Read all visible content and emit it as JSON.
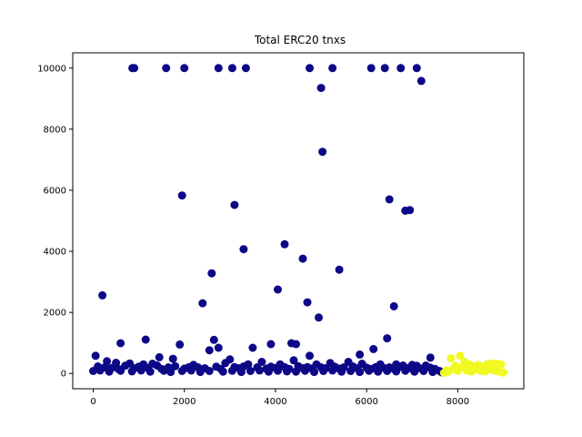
{
  "chart_data": {
    "type": "scatter",
    "title": "Total ERC20 tnxs",
    "xlabel": "",
    "ylabel": "",
    "xlim": [
      -450,
      9450
    ],
    "ylim": [
      -500,
      10500
    ],
    "xticks": [
      0,
      2000,
      4000,
      6000,
      8000
    ],
    "yticks": [
      0,
      2000,
      4000,
      6000,
      8000,
      10000
    ],
    "xtick_labels": [
      "0",
      "2000",
      "4000",
      "6000",
      "8000"
    ],
    "ytick_labels": [
      "0",
      "2000",
      "4000",
      "6000",
      "8000",
      "10000"
    ],
    "grid": false,
    "legend": "none",
    "series": [
      {
        "color": "#0d0887",
        "points": [
          [
            860,
            10000
          ],
          [
            900,
            10000
          ],
          [
            1600,
            10000
          ],
          [
            2000,
            10000
          ],
          [
            2750,
            10000
          ],
          [
            3050,
            10000
          ],
          [
            3350,
            10000
          ],
          [
            4750,
            10000
          ],
          [
            5250,
            10000
          ],
          [
            6100,
            10000
          ],
          [
            6400,
            10000
          ],
          [
            6750,
            10000
          ],
          [
            7100,
            10000
          ],
          [
            5000,
            9350
          ],
          [
            7200,
            9580
          ],
          [
            5030,
            7260
          ],
          [
            1950,
            5830
          ],
          [
            3100,
            5520
          ],
          [
            6500,
            5700
          ],
          [
            6850,
            5330
          ],
          [
            6950,
            5350
          ],
          [
            3300,
            4070
          ],
          [
            4200,
            4230
          ],
          [
            4600,
            3760
          ],
          [
            5400,
            3400
          ],
          [
            2600,
            3280
          ],
          [
            4050,
            2750
          ],
          [
            2400,
            2300
          ],
          [
            4700,
            2330
          ],
          [
            6600,
            2200
          ],
          [
            200,
            2560
          ],
          [
            4950,
            1830
          ],
          [
            6450,
            1150
          ],
          [
            1150,
            1110
          ],
          [
            2650,
            1100
          ],
          [
            600,
            990
          ],
          [
            1900,
            950
          ],
          [
            3900,
            960
          ],
          [
            4350,
            990
          ],
          [
            4450,
            960
          ],
          [
            2550,
            760
          ],
          [
            2750,
            840
          ],
          [
            3500,
            840
          ],
          [
            6150,
            800
          ],
          [
            4750,
            580
          ],
          [
            5850,
            620
          ],
          [
            7400,
            520
          ],
          [
            50,
            580
          ],
          [
            1450,
            530
          ],
          [
            1750,
            480
          ],
          [
            3000,
            460
          ],
          [
            4400,
            430
          ],
          [
            5600,
            380
          ],
          [
            6650,
            300
          ],
          [
            7000,
            280
          ],
          [
            7100,
            250
          ],
          [
            300,
            400
          ],
          [
            500,
            350
          ],
          [
            800,
            330
          ],
          [
            1100,
            300
          ],
          [
            1300,
            320
          ],
          [
            2200,
            280
          ],
          [
            2900,
            340
          ],
          [
            3400,
            300
          ],
          [
            3700,
            380
          ],
          [
            4100,
            300
          ],
          [
            4900,
            300
          ],
          [
            5200,
            340
          ],
          [
            5900,
            320
          ],
          [
            6300,
            300
          ],
          [
            6800,
            260
          ],
          [
            7300,
            260
          ],
          [
            100,
            230
          ],
          [
            250,
            200
          ],
          [
            400,
            180
          ],
          [
            550,
            150
          ],
          [
            700,
            250
          ],
          [
            900,
            170
          ],
          [
            1000,
            220
          ],
          [
            1200,
            180
          ],
          [
            1400,
            260
          ],
          [
            1500,
            150
          ],
          [
            1650,
            200
          ],
          [
            1800,
            240
          ],
          [
            2000,
            160
          ],
          [
            2100,
            210
          ],
          [
            2300,
            200
          ],
          [
            2450,
            170
          ],
          [
            2700,
            220
          ],
          [
            2800,
            150
          ],
          [
            3100,
            210
          ],
          [
            3200,
            170
          ],
          [
            3300,
            230
          ],
          [
            3600,
            200
          ],
          [
            3800,
            160
          ],
          [
            3900,
            220
          ],
          [
            4000,
            180
          ],
          [
            4200,
            210
          ],
          [
            4300,
            150
          ],
          [
            4500,
            240
          ],
          [
            4600,
            170
          ],
          [
            4700,
            210
          ],
          [
            4800,
            160
          ],
          [
            5000,
            200
          ],
          [
            5100,
            170
          ],
          [
            5300,
            220
          ],
          [
            5400,
            160
          ],
          [
            5500,
            200
          ],
          [
            5700,
            230
          ],
          [
            5800,
            170
          ],
          [
            6000,
            190
          ],
          [
            6100,
            150
          ],
          [
            6200,
            210
          ],
          [
            6400,
            170
          ],
          [
            6500,
            200
          ],
          [
            6600,
            150
          ],
          [
            6700,
            200
          ],
          [
            6900,
            170
          ],
          [
            7000,
            150
          ],
          [
            7150,
            180
          ],
          [
            7250,
            160
          ],
          [
            7400,
            190
          ],
          [
            7500,
            150
          ],
          [
            0,
            80
          ],
          [
            150,
            100
          ],
          [
            350,
            60
          ],
          [
            600,
            90
          ],
          [
            850,
            70
          ],
          [
            1050,
            100
          ],
          [
            1250,
            60
          ],
          [
            1550,
            90
          ],
          [
            1700,
            50
          ],
          [
            1950,
            80
          ],
          [
            2150,
            100
          ],
          [
            2350,
            50
          ],
          [
            2550,
            80
          ],
          [
            2850,
            60
          ],
          [
            3050,
            90
          ],
          [
            3250,
            50
          ],
          [
            3450,
            80
          ],
          [
            3650,
            100
          ],
          [
            3850,
            60
          ],
          [
            4050,
            90
          ],
          [
            4250,
            70
          ],
          [
            4450,
            60
          ],
          [
            4650,
            90
          ],
          [
            4850,
            50
          ],
          [
            5050,
            80
          ],
          [
            5250,
            100
          ],
          [
            5450,
            60
          ],
          [
            5650,
            80
          ],
          [
            5850,
            50
          ],
          [
            6050,
            90
          ],
          [
            6250,
            60
          ],
          [
            6450,
            80
          ],
          [
            6650,
            70
          ],
          [
            6850,
            90
          ],
          [
            7050,
            60
          ],
          [
            7250,
            80
          ],
          [
            7450,
            50
          ],
          [
            7600,
            80
          ],
          [
            7650,
            40
          ]
        ]
      },
      {
        "color": "#f0f921",
        "points": [
          [
            7750,
            100
          ],
          [
            7850,
            500
          ],
          [
            7950,
            250
          ],
          [
            8050,
            580
          ],
          [
            8150,
            380
          ],
          [
            8250,
            300
          ],
          [
            8350,
            220
          ],
          [
            8450,
            280
          ],
          [
            8550,
            180
          ],
          [
            8650,
            300
          ],
          [
            8750,
            330
          ],
          [
            8850,
            320
          ],
          [
            8950,
            300
          ],
          [
            7800,
            60
          ],
          [
            7900,
            150
          ],
          [
            8000,
            80
          ],
          [
            8100,
            200
          ],
          [
            8200,
            100
          ],
          [
            8300,
            60
          ],
          [
            8400,
            150
          ],
          [
            8500,
            90
          ],
          [
            8600,
            70
          ],
          [
            8700,
            150
          ],
          [
            8800,
            100
          ],
          [
            8900,
            60
          ],
          [
            9000,
            30
          ],
          [
            7700,
            20
          ],
          [
            8600,
            240
          ],
          [
            8300,
            250
          ]
        ]
      }
    ],
    "marker": "circle"
  }
}
